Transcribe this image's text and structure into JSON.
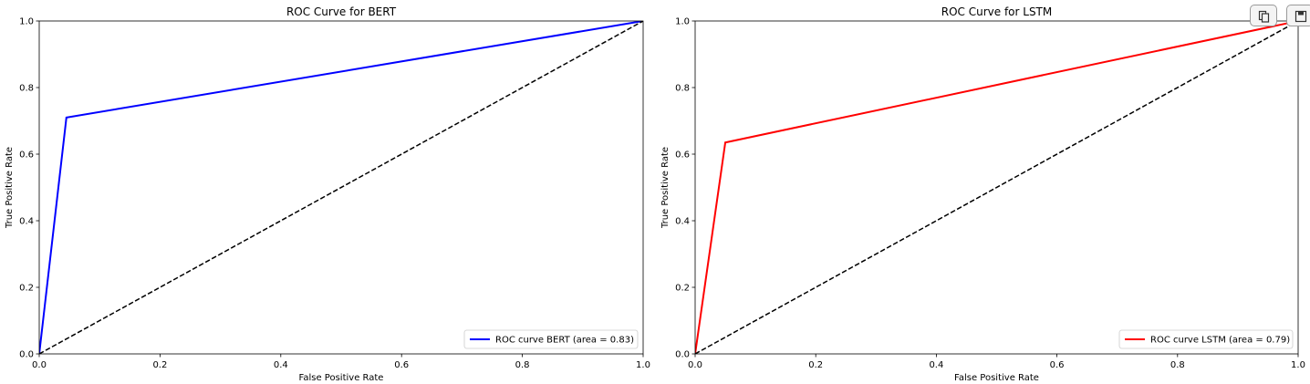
{
  "toolbar": {
    "copy_icon": "copy-icon",
    "save_icon": "save-icon"
  },
  "chart_data": [
    {
      "type": "line",
      "title": "ROC Curve for BERT",
      "xlabel": "False Positive Rate",
      "ylabel": "True Positive Rate",
      "xlim": [
        0.0,
        1.0
      ],
      "ylim": [
        0.0,
        1.0
      ],
      "xticks": [
        "0.0",
        "0.2",
        "0.4",
        "0.6",
        "0.8",
        "1.0"
      ],
      "yticks": [
        "0.0",
        "0.2",
        "0.4",
        "0.6",
        "0.8",
        "1.0"
      ],
      "grid": false,
      "legend_position": "lower right",
      "series": [
        {
          "name": "ROC curve BERT (area = 0.83)",
          "color": "#0000ff",
          "style": "solid",
          "x": [
            0.0,
            0.045,
            1.0
          ],
          "y": [
            0.0,
            0.71,
            1.0
          ]
        },
        {
          "color": "#000000",
          "style": "dashed",
          "x": [
            0.0,
            1.0
          ],
          "y": [
            0.0,
            1.0
          ]
        }
      ]
    },
    {
      "type": "line",
      "title": "ROC Curve for LSTM",
      "xlabel": "False Positive Rate",
      "ylabel": "True Positive Rate",
      "xlim": [
        0.0,
        1.0
      ],
      "ylim": [
        0.0,
        1.0
      ],
      "xticks": [
        "0.0",
        "0.2",
        "0.4",
        "0.6",
        "0.8",
        "1.0"
      ],
      "yticks": [
        "0.0",
        "0.2",
        "0.4",
        "0.6",
        "0.8",
        "1.0"
      ],
      "grid": false,
      "legend_position": "lower right",
      "series": [
        {
          "name": "ROC curve LSTM (area = 0.79)",
          "color": "#ff0000",
          "style": "solid",
          "x": [
            0.0,
            0.05,
            1.0
          ],
          "y": [
            0.0,
            0.635,
            1.0
          ]
        },
        {
          "color": "#000000",
          "style": "dashed",
          "x": [
            0.0,
            1.0
          ],
          "y": [
            0.0,
            1.0
          ]
        }
      ]
    }
  ]
}
